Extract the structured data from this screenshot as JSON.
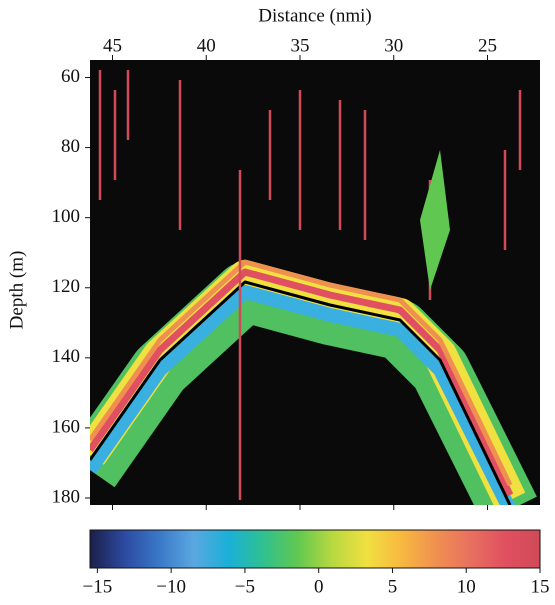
{
  "chart_data": {
    "type": "echogram",
    "xlabel": "Distance (nmi)",
    "ylabel": "Depth (m)",
    "xlim": [
      46.2,
      22.2
    ],
    "xticks": [
      45,
      40,
      35,
      30,
      25
    ],
    "ylim": [
      55,
      182
    ],
    "yticks": [
      60,
      80,
      100,
      120,
      140,
      160,
      180
    ],
    "colorbar": {
      "lim": [
        -15.5,
        15
      ],
      "ticks": [
        {
          "value": -15,
          "label": "−15"
        },
        {
          "value": -10,
          "label": "−10"
        },
        {
          "value": -5,
          "label": "−5"
        },
        0,
        5,
        10,
        15
      ],
      "colors": [
        "#1a1f4a",
        "#2c4aa0",
        "#3a78c8",
        "#5aa8e0",
        "#1ab0d8",
        "#30c090",
        "#60c850",
        "#b8d840",
        "#f0e040",
        "#f8b840",
        "#f09050",
        "#e87060",
        "#e05060",
        "#d04a58"
      ]
    }
  }
}
